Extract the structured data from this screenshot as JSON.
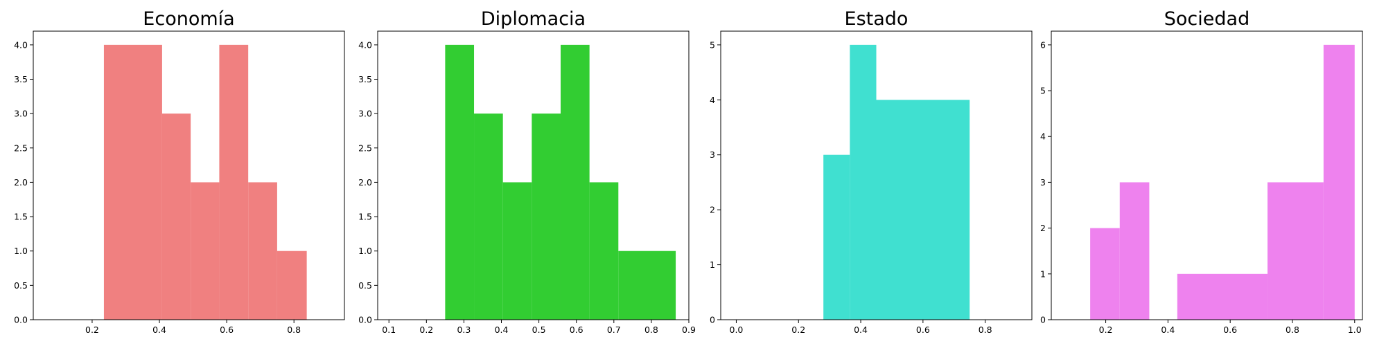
{
  "chart_data": [
    {
      "type": "histogram",
      "title": "Economía",
      "color": "#F08080",
      "xlim": [
        0.025,
        0.95
      ],
      "ylim": [
        0,
        4.2
      ],
      "xticks": [
        0.2,
        0.4,
        0.6,
        0.8
      ],
      "yticks": [
        0.0,
        0.5,
        1.0,
        1.5,
        2.0,
        2.5,
        3.0,
        3.5,
        4.0
      ],
      "bins": [
        {
          "x0": 0.235,
          "x1": 0.408,
          "count": 4
        },
        {
          "x0": 0.408,
          "x1": 0.493,
          "count": 3
        },
        {
          "x0": 0.493,
          "x1": 0.578,
          "count": 2
        },
        {
          "x0": 0.578,
          "x1": 0.664,
          "count": 4
        },
        {
          "x0": 0.664,
          "x1": 0.75,
          "count": 2
        },
        {
          "x0": 0.75,
          "x1": 0.838,
          "count": 1
        }
      ]
    },
    {
      "type": "histogram",
      "title": "Diplomacia",
      "color": "#32CD32",
      "xlim": [
        0.07,
        0.9
      ],
      "ylim": [
        0,
        4.2
      ],
      "xticks": [
        0.1,
        0.2,
        0.3,
        0.4,
        0.5,
        0.6,
        0.7,
        0.8,
        0.9
      ],
      "yticks": [
        0.0,
        0.5,
        1.0,
        1.5,
        2.0,
        2.5,
        3.0,
        3.5,
        4.0
      ],
      "bins": [
        {
          "x0": 0.25,
          "x1": 0.327,
          "count": 4
        },
        {
          "x0": 0.327,
          "x1": 0.404,
          "count": 3
        },
        {
          "x0": 0.404,
          "x1": 0.481,
          "count": 2
        },
        {
          "x0": 0.481,
          "x1": 0.558,
          "count": 3
        },
        {
          "x0": 0.558,
          "x1": 0.635,
          "count": 4
        },
        {
          "x0": 0.635,
          "x1": 0.712,
          "count": 2
        },
        {
          "x0": 0.712,
          "x1": 0.865,
          "count": 1
        }
      ]
    },
    {
      "type": "histogram",
      "title": "Estado",
      "color": "#40E0D0",
      "xlim": [
        -0.05,
        0.95
      ],
      "ylim": [
        0,
        5.25
      ],
      "xticks": [
        0.0,
        0.2,
        0.4,
        0.6,
        0.8
      ],
      "yticks": [
        0,
        1,
        2,
        3,
        4,
        5
      ],
      "bins": [
        {
          "x0": 0.28,
          "x1": 0.365,
          "count": 3
        },
        {
          "x0": 0.365,
          "x1": 0.45,
          "count": 5
        },
        {
          "x0": 0.45,
          "x1": 0.75,
          "count": 4
        }
      ]
    },
    {
      "type": "histogram",
      "title": "Sociedad",
      "color": "#EE82EE",
      "xlim": [
        0.025,
        1.025
      ],
      "ylim": [
        0,
        6.3
      ],
      "xticks": [
        0.2,
        0.4,
        0.6,
        0.8,
        1.0
      ],
      "yticks": [
        0,
        1,
        2,
        3,
        4,
        5,
        6
      ],
      "bins": [
        {
          "x0": 0.15,
          "x1": 0.245,
          "count": 2
        },
        {
          "x0": 0.245,
          "x1": 0.34,
          "count": 3
        },
        {
          "x0": 0.34,
          "x1": 0.43,
          "count": 0
        },
        {
          "x0": 0.43,
          "x1": 0.72,
          "count": 1
        },
        {
          "x0": 0.72,
          "x1": 0.9,
          "count": 3
        },
        {
          "x0": 0.9,
          "x1": 1.0,
          "count": 6
        }
      ]
    }
  ]
}
